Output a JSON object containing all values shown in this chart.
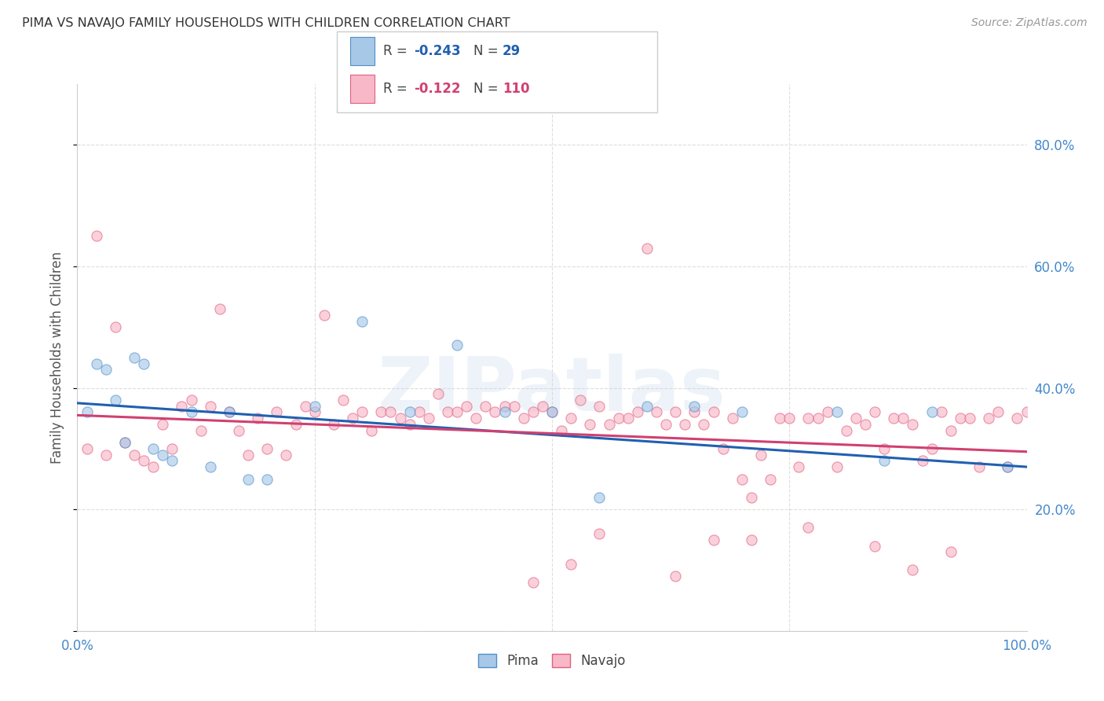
{
  "title": "PIMA VS NAVAJO FAMILY HOUSEHOLDS WITH CHILDREN CORRELATION CHART",
  "source": "Source: ZipAtlas.com",
  "ylabel": "Family Households with Children",
  "watermark": "ZIPatlas",
  "pima": {
    "label": "Pima",
    "R": -0.243,
    "N": 29,
    "color": "#a8c8e8",
    "edge_color": "#5090c8",
    "line_color": "#2060b0",
    "x": [
      1,
      2,
      3,
      4,
      5,
      6,
      7,
      8,
      9,
      10,
      12,
      14,
      16,
      18,
      20,
      25,
      30,
      35,
      40,
      45,
      50,
      55,
      60,
      65,
      70,
      80,
      85,
      90,
      98
    ],
    "y": [
      36,
      44,
      43,
      38,
      31,
      45,
      44,
      30,
      29,
      28,
      36,
      27,
      36,
      25,
      25,
      37,
      51,
      36,
      47,
      36,
      36,
      22,
      37,
      37,
      36,
      36,
      28,
      36,
      27
    ]
  },
  "navajo": {
    "label": "Navajo",
    "R": -0.122,
    "N": 110,
    "color": "#f8b8c8",
    "edge_color": "#e06080",
    "line_color": "#d04070",
    "x": [
      1,
      2,
      3,
      4,
      5,
      6,
      7,
      8,
      9,
      10,
      11,
      12,
      13,
      14,
      15,
      16,
      17,
      18,
      19,
      20,
      21,
      22,
      23,
      24,
      25,
      26,
      27,
      28,
      29,
      30,
      31,
      32,
      33,
      34,
      35,
      36,
      37,
      38,
      39,
      40,
      41,
      42,
      43,
      44,
      45,
      46,
      47,
      48,
      49,
      50,
      51,
      52,
      53,
      54,
      55,
      56,
      57,
      58,
      59,
      60,
      61,
      62,
      63,
      64,
      65,
      66,
      67,
      68,
      69,
      70,
      71,
      72,
      73,
      74,
      75,
      76,
      77,
      78,
      79,
      80,
      81,
      82,
      83,
      84,
      85,
      86,
      87,
      88,
      89,
      90,
      91,
      92,
      93,
      94,
      95,
      96,
      97,
      98,
      99,
      100,
      55,
      63,
      48,
      52,
      77,
      88,
      92,
      67,
      71,
      84
    ],
    "y": [
      30,
      65,
      29,
      50,
      31,
      29,
      28,
      27,
      34,
      30,
      37,
      38,
      33,
      37,
      53,
      36,
      33,
      29,
      35,
      30,
      36,
      29,
      34,
      37,
      36,
      52,
      34,
      38,
      35,
      36,
      33,
      36,
      36,
      35,
      34,
      36,
      35,
      39,
      36,
      36,
      37,
      35,
      37,
      36,
      37,
      37,
      35,
      36,
      37,
      36,
      33,
      35,
      38,
      34,
      37,
      34,
      35,
      35,
      36,
      63,
      36,
      34,
      36,
      34,
      36,
      34,
      36,
      30,
      35,
      25,
      22,
      29,
      25,
      35,
      35,
      27,
      35,
      35,
      36,
      27,
      33,
      35,
      34,
      36,
      30,
      35,
      35,
      34,
      28,
      30,
      36,
      33,
      35,
      35,
      27,
      35,
      36,
      27,
      35,
      36,
      16,
      9,
      8,
      11,
      17,
      10,
      13,
      15,
      15,
      14
    ]
  },
  "pima_line": {
    "x0": 0,
    "y0": 37.5,
    "x1": 100,
    "y1": 27.0
  },
  "navajo_line": {
    "x0": 0,
    "y0": 35.5,
    "x1": 100,
    "y1": 29.5
  },
  "xlim": [
    0,
    100
  ],
  "ylim": [
    0,
    90
  ],
  "ytick_vals": [
    0,
    20,
    40,
    60,
    80
  ],
  "ytick_labels_right": [
    "",
    "20.0%",
    "40.0%",
    "60.0%",
    "80.0%"
  ],
  "xtick_vals": [
    0,
    25,
    50,
    75,
    100
  ],
  "xtick_labels": [
    "0.0%",
    "",
    "",
    "",
    "100.0%"
  ],
  "grid_color": "#dddddd",
  "bg_color": "#ffffff",
  "marker_size": 90,
  "marker_alpha": 0.65,
  "title_color": "#333333",
  "ylabel_color": "#555555",
  "tick_color": "#4488cc",
  "legend_box_color": "#cccccc"
}
